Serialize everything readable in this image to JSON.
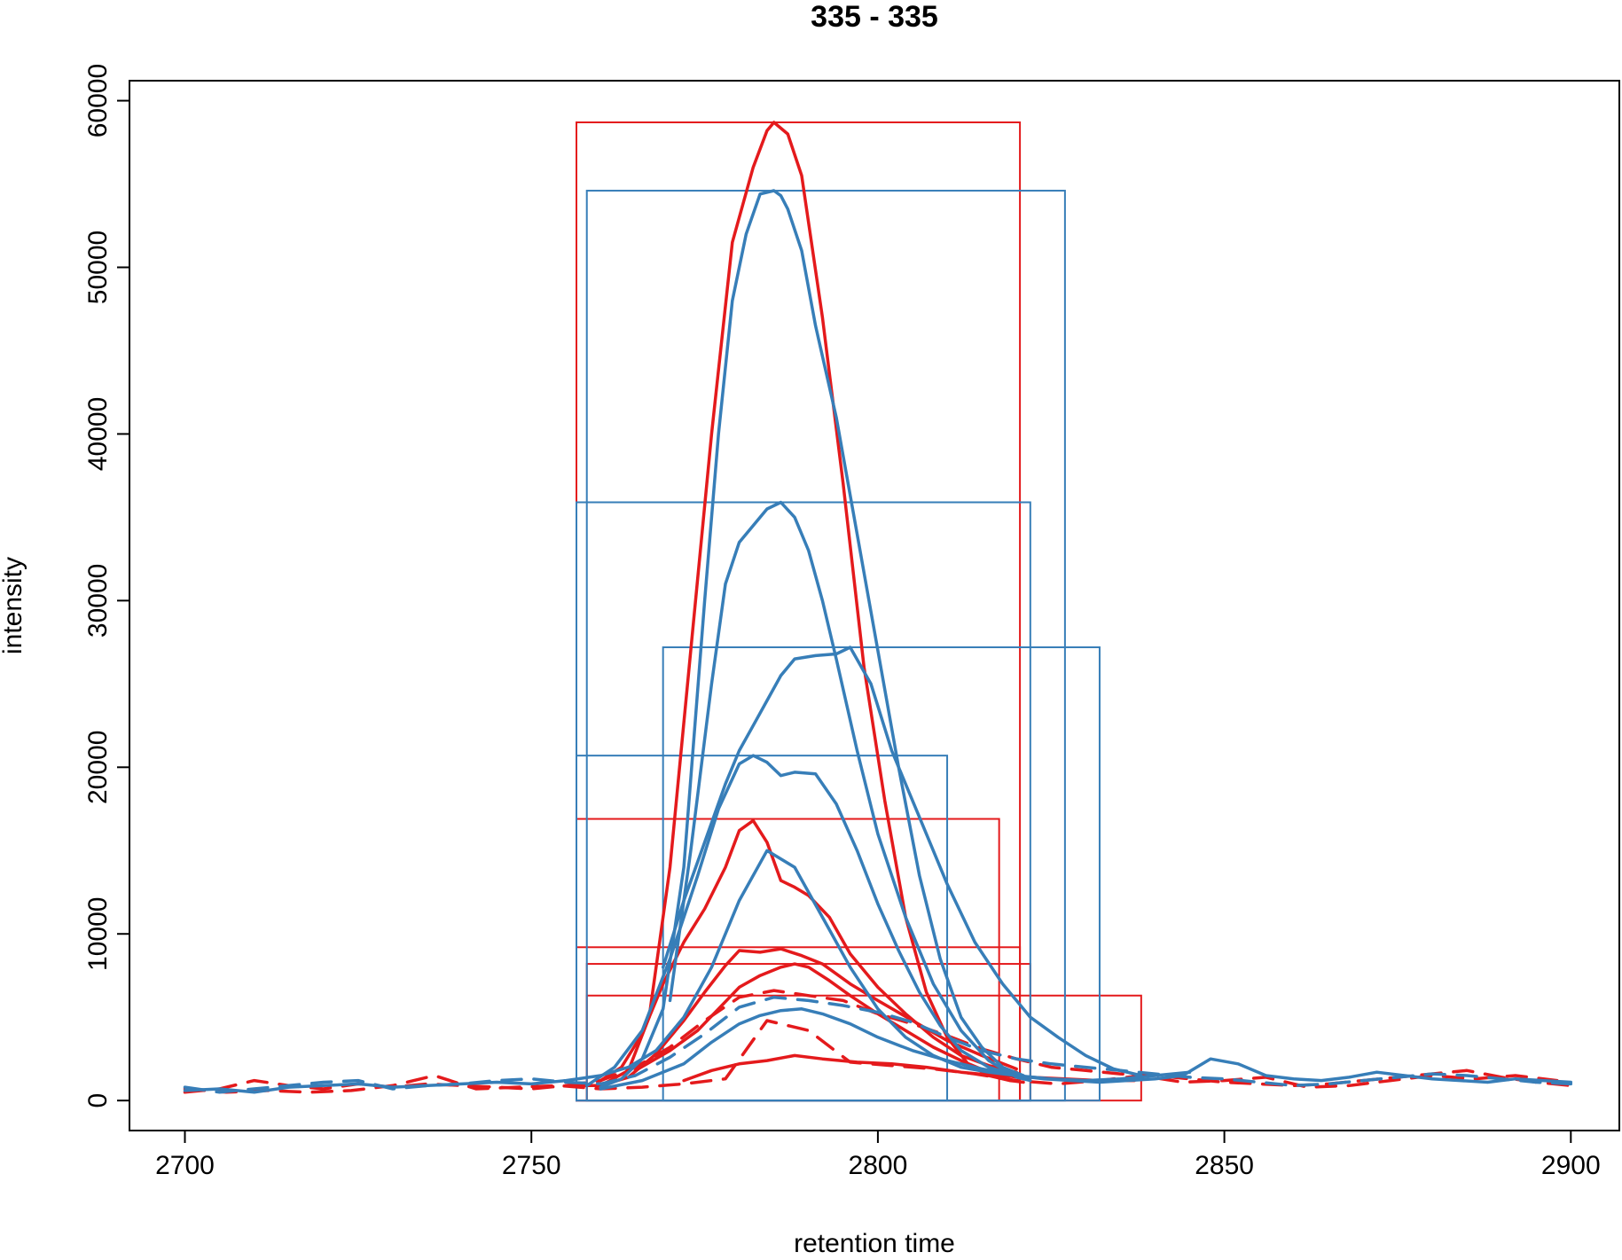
{
  "chart_data": {
    "type": "line",
    "title": "335 - 335",
    "xlabel": "retention time",
    "ylabel": "intensity",
    "xlim": [
      2692,
      2907
    ],
    "ylim": [
      -1800,
      61200
    ],
    "x_ticks": [
      2700,
      2750,
      2800,
      2850,
      2900
    ],
    "y_ticks": [
      0,
      10000,
      20000,
      30000,
      40000,
      50000,
      60000
    ],
    "x_tick_labels": [
      "2700",
      "2750",
      "2800",
      "2850",
      "2900"
    ],
    "y_tick_labels": [
      "0",
      "10000",
      "20000",
      "30000",
      "40000",
      "50000",
      "60000"
    ],
    "grid": false,
    "colors": {
      "red": "#e41a1c",
      "blue": "#377eb8"
    },
    "peak_rectangles": [
      {
        "color": "red",
        "rtmin": 2756.5,
        "rtmax": 2820.5,
        "maxo": 58700
      },
      {
        "color": "red",
        "rtmin": 2756.5,
        "rtmax": 2817.5,
        "maxo": 16900
      },
      {
        "color": "red",
        "rtmin": 2756.5,
        "rtmax": 2820.5,
        "maxo": 9200
      },
      {
        "color": "red",
        "rtmin": 2758.0,
        "rtmax": 2822.0,
        "maxo": 8200
      },
      {
        "color": "red",
        "rtmin": 2758.0,
        "rtmax": 2838.0,
        "maxo": 6300
      },
      {
        "color": "blue",
        "rtmin": 2758.0,
        "rtmax": 2827.0,
        "maxo": 54600
      },
      {
        "color": "blue",
        "rtmin": 2756.5,
        "rtmax": 2822.0,
        "maxo": 35900
      },
      {
        "color": "blue",
        "rtmin": 2769.0,
        "rtmax": 2832.0,
        "maxo": 27200
      },
      {
        "color": "blue",
        "rtmin": 2756.5,
        "rtmax": 2810.0,
        "maxo": 20700
      }
    ],
    "series": [
      {
        "color": "red",
        "dashed": false,
        "x": [
          2756,
          2760,
          2764,
          2767,
          2770,
          2773,
          2776,
          2779,
          2782,
          2784,
          2785,
          2787,
          2789,
          2792,
          2795,
          2798,
          2801,
          2804,
          2807,
          2810,
          2813,
          2816,
          2819,
          2821
        ],
        "y": [
          900,
          900,
          1800,
          5000,
          14000,
          27000,
          40000,
          51500,
          56000,
          58200,
          58700,
          58000,
          55500,
          47000,
          37000,
          26000,
          18000,
          11000,
          6500,
          3800,
          2200,
          1500,
          1200,
          1100
        ]
      },
      {
        "color": "red",
        "dashed": false,
        "x": [
          2760,
          2763,
          2766,
          2769,
          2772,
          2775,
          2778,
          2780,
          2782,
          2784,
          2786,
          2788,
          2790,
          2793,
          2796,
          2800,
          2804,
          2808,
          2812,
          2816,
          2820
        ],
        "y": [
          1200,
          2000,
          4000,
          7000,
          9500,
          11500,
          14000,
          16200,
          16800,
          15500,
          13200,
          12800,
          12300,
          11000,
          8800,
          6800,
          5200,
          3800,
          2700,
          2100,
          1700
        ]
      },
      {
        "color": "red",
        "dashed": false,
        "x": [
          2760,
          2764,
          2768,
          2772,
          2775,
          2778,
          2780,
          2783,
          2786,
          2789,
          2792,
          2796,
          2800,
          2805,
          2810,
          2815,
          2820
        ],
        "y": [
          900,
          1400,
          2800,
          4800,
          6500,
          8100,
          9000,
          8900,
          9100,
          8700,
          8200,
          7000,
          6000,
          4800,
          3600,
          2700,
          1900
        ]
      },
      {
        "color": "red",
        "dashed": false,
        "x": [
          2765,
          2770,
          2774,
          2777,
          2780,
          2783,
          2786,
          2788,
          2790,
          2793,
          2796,
          2800,
          2804,
          2808,
          2812,
          2816,
          2820
        ],
        "y": [
          1800,
          3000,
          4200,
          5500,
          6800,
          7500,
          8000,
          8200,
          8000,
          7200,
          6300,
          5200,
          4200,
          3200,
          2400,
          1700,
          1400
        ]
      },
      {
        "color": "red",
        "dashed": false,
        "x": [
          2772,
          2776,
          2780,
          2784,
          2788,
          2792,
          2797,
          2802,
          2807,
          2812,
          2817,
          2822,
          2827,
          2832,
          2837
        ],
        "y": [
          1200,
          1800,
          2200,
          2400,
          2700,
          2500,
          2300,
          2200,
          2000,
          1700,
          1500,
          1400,
          1300,
          1200,
          1200
        ]
      },
      {
        "color": "red",
        "dashed": true,
        "x": [
          2700,
          2706,
          2712,
          2718,
          2724,
          2730,
          2736,
          2742,
          2748,
          2754,
          2760,
          2766,
          2772,
          2778,
          2784,
          2790,
          2796,
          2802,
          2808,
          2814,
          2820,
          2826,
          2832,
          2838,
          2844,
          2850,
          2856,
          2862,
          2868,
          2874,
          2880,
          2886,
          2892,
          2898
        ],
        "y": [
          700,
          500,
          600,
          500,
          600,
          900,
          1500,
          700,
          800,
          900,
          700,
          800,
          1000,
          1300,
          4800,
          4200,
          2300,
          2100,
          1900,
          1600,
          1200,
          1000,
          1200,
          1500,
          1100,
          1200,
          1400,
          800,
          900,
          1200,
          1500,
          1300,
          1500,
          1200
        ]
      },
      {
        "color": "red",
        "dashed": true,
        "x": [
          2700,
          2705,
          2710,
          2715,
          2720,
          2725,
          2730,
          2735,
          2740,
          2745,
          2750,
          2755,
          2760,
          2765,
          2770,
          2775,
          2780,
          2785,
          2790,
          2795,
          2800,
          2805,
          2810,
          2815,
          2820,
          2825,
          2830,
          2835,
          2840,
          2845,
          2850,
          2855,
          2860,
          2865,
          2870,
          2875,
          2880,
          2885,
          2890,
          2895,
          2900
        ],
        "y": [
          500,
          700,
          1200,
          900,
          700,
          1000,
          800,
          1000,
          900,
          800,
          700,
          900,
          1200,
          2000,
          3200,
          4800,
          6200,
          6600,
          6300,
          6000,
          5200,
          4600,
          3900,
          3100,
          2500,
          2000,
          1800,
          1600,
          1500,
          1300,
          1100,
          1000,
          900,
          1000,
          1200,
          1400,
          1600,
          1800,
          1400,
          1100,
          900
        ]
      },
      {
        "color": "blue",
        "dashed": false,
        "x": [
          2760,
          2763,
          2766,
          2769,
          2772,
          2775,
          2777,
          2779,
          2781,
          2783,
          2785,
          2786,
          2787,
          2789,
          2791,
          2794,
          2797,
          2800,
          2803,
          2806,
          2809,
          2812,
          2815,
          2818,
          2821
        ],
        "y": [
          800,
          1300,
          2500,
          5500,
          14000,
          30000,
          40000,
          48000,
          52000,
          54400,
          54600,
          54300,
          53500,
          51000,
          46500,
          41000,
          34000,
          27000,
          20000,
          13500,
          8500,
          5000,
          3200,
          2000,
          1500
        ]
      },
      {
        "color": "blue",
        "dashed": false,
        "x": [
          2770,
          2773,
          2776,
          2778,
          2780,
          2782,
          2784,
          2786,
          2788,
          2790,
          2792,
          2794,
          2797,
          2800,
          2804,
          2808,
          2812,
          2816,
          2820,
          2822
        ],
        "y": [
          6000,
          15000,
          25000,
          31000,
          33500,
          34500,
          35500,
          35900,
          35000,
          33000,
          30000,
          26500,
          21000,
          16000,
          11000,
          7000,
          4200,
          2400,
          1400,
          1200
        ]
      },
      {
        "color": "blue",
        "dashed": false,
        "x": [
          2769,
          2772,
          2775,
          2778,
          2780,
          2782,
          2784,
          2786,
          2788,
          2791,
          2794,
          2796,
          2799,
          2802,
          2806,
          2810,
          2814,
          2818,
          2822,
          2826,
          2830,
          2834,
          2838
        ],
        "y": [
          8000,
          12000,
          15500,
          19000,
          21000,
          22500,
          24000,
          25500,
          26500,
          26700,
          26800,
          27200,
          25000,
          21000,
          17000,
          13000,
          9500,
          7000,
          5000,
          3800,
          2700,
          1900,
          1500
        ]
      },
      {
        "color": "blue",
        "dashed": false,
        "x": [
          2758,
          2762,
          2766,
          2770,
          2774,
          2777,
          2780,
          2782,
          2784,
          2786,
          2788,
          2791,
          2794,
          2797,
          2800,
          2803,
          2806,
          2809,
          2812,
          2816,
          2820
        ],
        "y": [
          900,
          2000,
          4200,
          8500,
          13500,
          17500,
          20200,
          20700,
          20300,
          19500,
          19700,
          19600,
          17800,
          15000,
          11800,
          9000,
          6500,
          4500,
          3000,
          2000,
          1500
        ]
      },
      {
        "color": "blue",
        "dashed": false,
        "x": [
          2760,
          2766,
          2772,
          2776,
          2780,
          2783,
          2786,
          2789,
          2792,
          2796,
          2800,
          2805,
          2810,
          2815,
          2820,
          2825,
          2830,
          2835,
          2840,
          2845
        ],
        "y": [
          700,
          1200,
          2200,
          3500,
          4600,
          5100,
          5400,
          5500,
          5200,
          4600,
          3800,
          3000,
          2400,
          1900,
          1500,
          1300,
          1200,
          1300,
          1500,
          1700
        ]
      },
      {
        "color": "blue",
        "dashed": true,
        "x": [
          2700,
          2705,
          2710,
          2715,
          2720,
          2725,
          2730,
          2735,
          2740,
          2745,
          2750,
          2755,
          2760,
          2765,
          2770,
          2775,
          2780,
          2785,
          2790,
          2795,
          2800,
          2805,
          2810,
          2815,
          2820,
          2825,
          2830,
          2835,
          2840,
          2845,
          2850,
          2855,
          2860,
          2865,
          2870,
          2875,
          2880,
          2885,
          2890,
          2895,
          2900
        ],
        "y": [
          800,
          500,
          700,
          900,
          1100,
          1200,
          700,
          900,
          1000,
          1200,
          1300,
          1100,
          1000,
          1500,
          2600,
          4000,
          5600,
          6200,
          6000,
          5700,
          5300,
          4700,
          3800,
          3000,
          2500,
          2200,
          2000,
          1800,
          1600,
          1400,
          1300,
          1100,
          900,
          1000,
          1200,
          1400,
          1600,
          1500,
          1300,
          1100,
          1000
        ]
      },
      {
        "color": "blue",
        "dashed": false,
        "x": [
          2700,
          2705,
          2710,
          2715,
          2720,
          2725,
          2730,
          2735,
          2740,
          2745,
          2750,
          2755,
          2760,
          2764,
          2768,
          2772,
          2776,
          2780,
          2784,
          2788,
          2792,
          2796,
          2800,
          2804,
          2808,
          2812,
          2816,
          2820,
          2824,
          2828,
          2832,
          2836,
          2840,
          2844,
          2848,
          2852,
          2856,
          2860,
          2864,
          2868,
          2872,
          2876,
          2880,
          2884,
          2888,
          2892,
          2896,
          2900
        ],
        "y": [
          600,
          700,
          500,
          800,
          900,
          1000,
          800,
          900,
          1000,
          1100,
          1000,
          1200,
          1500,
          2000,
          3000,
          5000,
          8000,
          12000,
          15000,
          14000,
          11000,
          8000,
          5500,
          3800,
          2700,
          2000,
          1700,
          1500,
          1300,
          1200,
          1100,
          1200,
          1300,
          1500,
          2500,
          2200,
          1500,
          1300,
          1200,
          1400,
          1700,
          1500,
          1300,
          1200,
          1100,
          1300,
          1200,
          1100
        ]
      }
    ]
  }
}
